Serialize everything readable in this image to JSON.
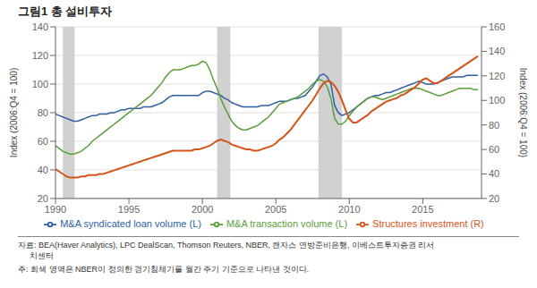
{
  "chart_data": {
    "type": "line",
    "title": "그림1  총 설비투자",
    "ylabel": "Index (2006:Q4 = 100)",
    "y2label": "Index (2006:Q4 = 100)",
    "xlim": [
      1990,
      2019
    ],
    "ylim": [
      20,
      140
    ],
    "y2lim": [
      20,
      160
    ],
    "xticks": [
      1990,
      1995,
      2000,
      2005,
      2010,
      2015
    ],
    "yticks": [
      20,
      40,
      60,
      80,
      100,
      120,
      140
    ],
    "y2ticks": [
      20,
      40,
      60,
      80,
      100,
      120,
      140,
      160
    ],
    "grid": true,
    "bands": [
      {
        "x1": 1990.5,
        "x2": 1991.3,
        "color": "#CCCCCC"
      },
      {
        "x1": 2001.0,
        "x2": 2001.9,
        "color": "#CCCCCC"
      },
      {
        "x1": 2007.9,
        "x2": 2009.5,
        "color": "#CCCCCC"
      }
    ],
    "annotations": [
      "자료: BEA(Haver Analytics), LPC DealScan, Thomson Reuters, NBER, 캔자스 연방준비은행, 이베스트투자증권 리서\n     치센터",
      "주: 회색 영역은 NBER이 정의한 경기침체기를 월간 주기 기준으로 나타낸 것이다."
    ],
    "x": [
      1990.0,
      1990.25,
      1990.5,
      1990.75,
      1991.0,
      1991.25,
      1991.5,
      1991.75,
      1992.0,
      1992.25,
      1992.5,
      1992.75,
      1993.0,
      1993.25,
      1993.5,
      1993.75,
      1994.0,
      1994.25,
      1994.5,
      1994.75,
      1995.0,
      1995.25,
      1995.5,
      1995.75,
      1996.0,
      1996.25,
      1996.5,
      1996.75,
      1997.0,
      1997.25,
      1997.5,
      1997.75,
      1998.0,
      1998.25,
      1998.5,
      1998.75,
      1999.0,
      1999.25,
      1999.5,
      1999.75,
      2000.0,
      2000.25,
      2000.5,
      2000.75,
      2001.0,
      2001.25,
      2001.5,
      2001.75,
      2002.0,
      2002.25,
      2002.5,
      2002.75,
      2003.0,
      2003.25,
      2003.5,
      2003.75,
      2004.0,
      2004.25,
      2004.5,
      2004.75,
      2005.0,
      2005.25,
      2005.5,
      2005.75,
      2006.0,
      2006.25,
      2006.5,
      2006.75,
      2007.0,
      2007.25,
      2007.5,
      2007.75,
      2008.0,
      2008.25,
      2008.5,
      2008.75,
      2009.0,
      2009.25,
      2009.5,
      2009.75,
      2010.0,
      2010.25,
      2010.5,
      2010.75,
      2011.0,
      2011.25,
      2011.5,
      2011.75,
      2012.0,
      2012.25,
      2012.5,
      2012.75,
      2013.0,
      2013.25,
      2013.5,
      2013.75,
      2014.0,
      2014.25,
      2014.5,
      2014.75,
      2015.0,
      2015.25,
      2015.5,
      2015.75,
      2016.0,
      2016.25,
      2016.5,
      2016.75,
      2017.0,
      2017.25,
      2017.5,
      2017.75,
      2018.0,
      2018.25,
      2018.5,
      2018.75
    ],
    "series": [
      {
        "name": "M&A syndicated loan volume (L)",
        "color": "#2E5FA3",
        "axis": "y",
        "values": [
          79,
          78,
          77,
          76,
          75,
          74,
          74,
          75,
          76,
          77,
          78,
          78,
          79,
          79,
          79,
          80,
          80,
          81,
          82,
          82,
          83,
          83,
          83,
          83,
          84,
          84,
          84,
          85,
          86,
          87,
          89,
          91,
          92,
          92,
          92,
          92,
          92,
          92,
          92,
          92,
          94,
          95,
          95,
          94,
          93,
          92,
          90,
          89,
          87,
          86,
          85,
          84,
          84,
          84,
          84,
          84,
          85,
          85,
          85,
          86,
          87,
          88,
          88,
          88,
          89,
          90,
          90,
          91,
          92,
          95,
          98,
          102,
          106,
          107,
          105,
          100,
          85,
          80,
          78,
          79,
          80,
          82,
          84,
          86,
          88,
          90,
          91,
          92,
          92,
          93,
          94,
          94,
          95,
          96,
          97,
          98,
          99,
          100,
          101,
          102,
          101,
          100,
          100,
          100,
          101,
          102,
          103,
          104,
          105,
          105,
          105,
          105,
          106,
          106,
          106,
          106
        ]
      },
      {
        "name": "M&A transaction volume (L)",
        "color": "#5A9E3A",
        "axis": "y",
        "values": [
          57,
          55,
          53,
          52,
          51,
          51,
          52,
          53,
          55,
          57,
          60,
          62,
          64,
          66,
          68,
          70,
          72,
          74,
          76,
          78,
          80,
          82,
          84,
          86,
          88,
          90,
          92,
          95,
          98,
          101,
          105,
          108,
          110,
          110,
          110,
          111,
          112,
          113,
          113,
          114,
          116,
          115,
          110,
          103,
          97,
          90,
          84,
          79,
          74,
          71,
          69,
          68,
          68,
          69,
          70,
          71,
          73,
          75,
          77,
          80,
          83,
          86,
          87,
          88,
          89,
          90,
          91,
          93,
          95,
          97,
          100,
          102,
          103,
          102,
          98,
          90,
          76,
          72,
          72,
          74,
          78,
          81,
          84,
          86,
          88,
          90,
          91,
          91,
          90,
          89,
          90,
          91,
          92,
          93,
          94,
          95,
          96,
          97,
          97,
          97,
          96,
          95,
          94,
          93,
          92,
          92,
          93,
          94,
          95,
          96,
          97,
          97,
          97,
          97,
          96,
          96
        ]
      },
      {
        "name": "Structures investment (R)",
        "color": "#D4541A",
        "axis": "y2",
        "values": [
          44,
          42,
          40,
          38,
          37,
          37,
          37,
          38,
          38,
          39,
          39,
          39,
          40,
          40,
          41,
          42,
          43,
          44,
          45,
          46,
          47,
          48,
          49,
          50,
          51,
          52,
          53,
          54,
          55,
          56,
          57,
          58,
          59,
          59,
          59,
          59,
          59,
          59,
          60,
          60,
          61,
          62,
          63,
          65,
          67,
          68,
          67,
          66,
          64,
          63,
          62,
          61,
          60,
          60,
          59,
          59,
          60,
          61,
          62,
          63,
          65,
          68,
          70,
          73,
          76,
          80,
          84,
          88,
          92,
          96,
          100,
          105,
          110,
          114,
          116,
          115,
          112,
          107,
          100,
          92,
          85,
          82,
          82,
          84,
          86,
          88,
          91,
          93,
          95,
          97,
          99,
          100,
          101,
          102,
          104,
          105,
          107,
          109,
          111,
          114,
          117,
          118,
          116,
          114,
          114,
          116,
          118,
          120,
          122,
          124,
          126,
          128,
          130,
          132,
          134,
          136
        ]
      }
    ]
  }
}
